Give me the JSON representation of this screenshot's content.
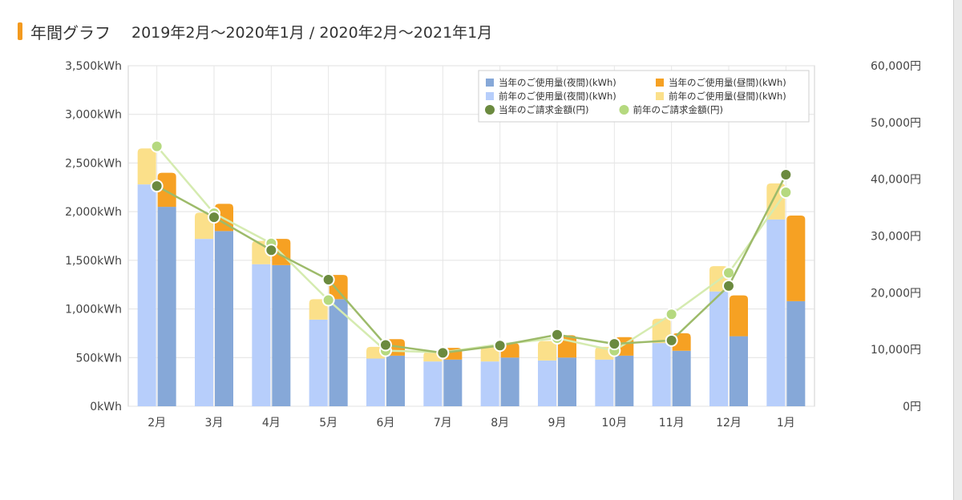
{
  "header": {
    "title": "年間グラフ",
    "range": "2019年2月〜2020年1月 / 2020年2月〜2021年1月"
  },
  "colors": {
    "accent": "#f39a1f",
    "current_night": "#86a8d8",
    "current_day": "#f6a123",
    "previous_night": "#b7cefb",
    "previous_day": "#fbe08a",
    "current_amount": "#6b8a3f",
    "previous_amount": "#b5d97f",
    "current_amount_line": "#9dbb6a",
    "previous_amount_line": "#d5ebb0"
  },
  "chart_data": {
    "type": "bar",
    "categories": [
      "2月",
      "3月",
      "4月",
      "5月",
      "6月",
      "7月",
      "8月",
      "9月",
      "10月",
      "11月",
      "12月",
      "1月"
    ],
    "y_left": {
      "ylim": [
        0,
        3500
      ],
      "ticks": [
        0,
        500,
        1000,
        1500,
        2000,
        2500,
        3000,
        3500
      ],
      "tick_labels": [
        "0kWh",
        "500kWh",
        "1,000kWh",
        "1,500kWh",
        "2,000kWh",
        "2,500kWh",
        "3,000kWh",
        "3,500kWh"
      ]
    },
    "y_right": {
      "ylim": [
        0,
        60000
      ],
      "ticks": [
        0,
        10000,
        20000,
        30000,
        40000,
        50000,
        60000
      ],
      "tick_labels": [
        "0円",
        "10,000円",
        "20,000円",
        "30,000円",
        "40,000円",
        "50,000円",
        "60,000円"
      ]
    },
    "grid": true,
    "legend_position": "top-right",
    "series": [
      {
        "name": "当年のご使用量(夜間)(kWh)",
        "kind": "bar",
        "stack": "current",
        "axis": "left",
        "values": [
          2050,
          1800,
          1450,
          1100,
          520,
          480,
          500,
          500,
          520,
          570,
          720,
          1080
        ]
      },
      {
        "name": "当年のご使用量(昼間)(kWh)",
        "kind": "bar",
        "stack": "current",
        "axis": "left",
        "values": [
          350,
          280,
          270,
          250,
          170,
          120,
          150,
          230,
          190,
          180,
          420,
          880
        ]
      },
      {
        "name": "前年のご使用量(夜間)(kWh)",
        "kind": "bar",
        "stack": "previous",
        "axis": "left",
        "values": [
          2280,
          1720,
          1460,
          890,
          490,
          460,
          460,
          470,
          480,
          650,
          1180,
          1920
        ]
      },
      {
        "name": "前年のご使用量(昼間)(kWh)",
        "kind": "bar",
        "stack": "previous",
        "axis": "left",
        "values": [
          370,
          270,
          240,
          210,
          120,
          100,
          150,
          200,
          130,
          250,
          260,
          370
        ]
      },
      {
        "name": "当年のご請求金額(円)",
        "kind": "line",
        "axis": "right",
        "values": [
          38800,
          33300,
          27500,
          22300,
          10800,
          9400,
          10700,
          12600,
          11000,
          11600,
          21200,
          40800
        ]
      },
      {
        "name": "前年のご請求金額(円)",
        "kind": "line",
        "axis": "right",
        "values": [
          45800,
          34000,
          28700,
          18700,
          9800,
          9500,
          10900,
          12000,
          9800,
          16200,
          23500,
          37700
        ]
      }
    ]
  }
}
